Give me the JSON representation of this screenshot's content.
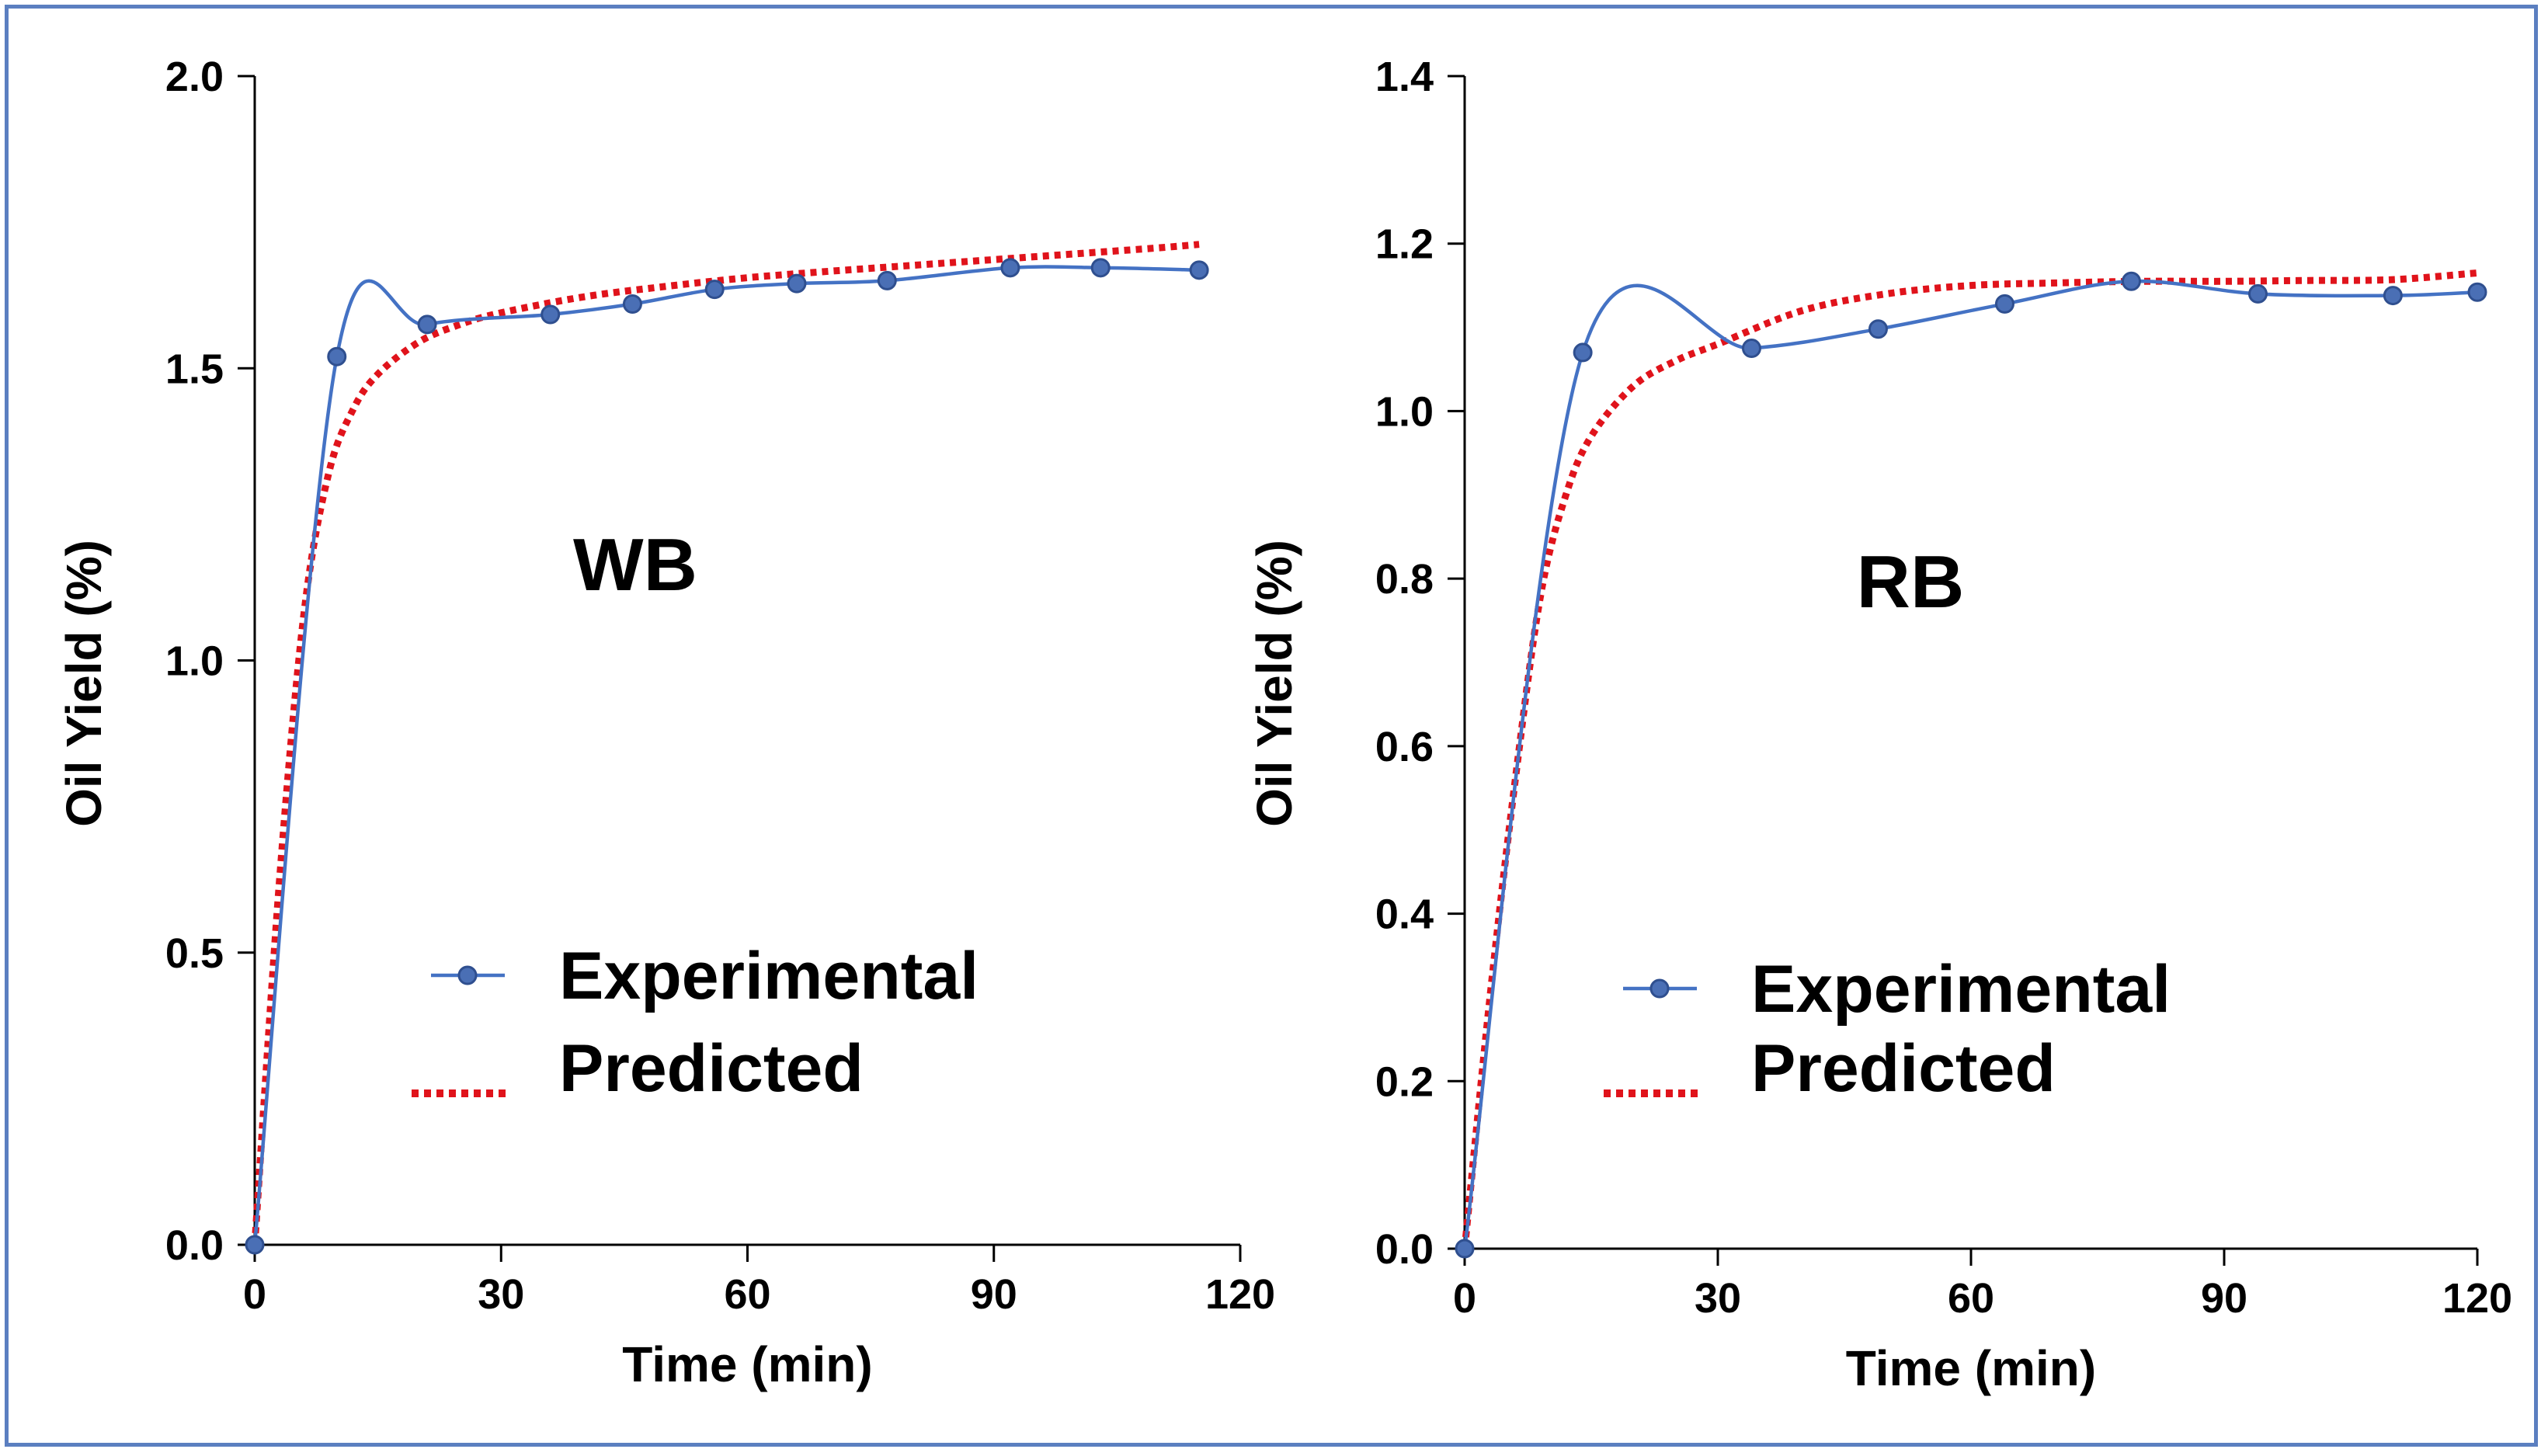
{
  "colors": {
    "experimental": "#4472c4",
    "marker_fill": "#4a6fb5",
    "marker_stroke": "#2f4f8f",
    "predicted": "#e0131b",
    "axis": "#000000",
    "frame": "#5b7fc0"
  },
  "chart_data": [
    {
      "type": "line",
      "panel_label": "WB",
      "xlabel": "Time (min)",
      "ylabel": "Oil  Yield (%)",
      "xlim": [
        0,
        120
      ],
      "ylim": [
        0,
        2.0
      ],
      "xticks": [
        0,
        30,
        60,
        90,
        120
      ],
      "xtick_labels": [
        "0",
        "30",
        "60",
        "90",
        "120"
      ],
      "yticks": [
        0.0,
        0.5,
        1.0,
        1.5,
        2.0
      ],
      "ytick_labels": [
        "0.0",
        "0.5",
        "1.0",
        "1.5",
        "2.0"
      ],
      "legend": {
        "placement": "lower-center",
        "entries": [
          "Experimental",
          "Predicted"
        ]
      },
      "series": [
        {
          "name": "Experimental",
          "style": "smooth line with markers",
          "x": [
            0,
            10,
            21,
            36,
            46,
            56,
            66,
            77,
            92,
            103,
            115
          ],
          "y": [
            0.0,
            1.52,
            1.575,
            1.592,
            1.61,
            1.635,
            1.645,
            1.65,
            1.672,
            1.672,
            1.668
          ]
        },
        {
          "name": "Predicted",
          "style": "dotted line",
          "x": [
            0,
            3,
            6,
            9,
            12,
            15,
            20,
            25,
            30,
            40,
            50,
            60,
            70,
            80,
            90,
            100,
            110,
            115
          ],
          "y": [
            0.0,
            0.62,
            1.08,
            1.32,
            1.43,
            1.49,
            1.545,
            1.575,
            1.595,
            1.622,
            1.64,
            1.655,
            1.666,
            1.676,
            1.686,
            1.696,
            1.706,
            1.712
          ]
        }
      ]
    },
    {
      "type": "line",
      "panel_label": "RB",
      "xlabel": "Time (min)",
      "ylabel": "Oil Yield (%)",
      "xlim": [
        0,
        120
      ],
      "ylim": [
        0,
        1.4
      ],
      "xticks": [
        0,
        30,
        60,
        90,
        120
      ],
      "xtick_labels": [
        "0",
        "30",
        "60",
        "90",
        "120"
      ],
      "yticks": [
        0.0,
        0.2,
        0.4,
        0.6,
        0.8,
        1.0,
        1.2,
        1.4
      ],
      "ytick_labels": [
        "0.0",
        "0.2",
        "0.4",
        "0.6",
        "0.8",
        "1.0",
        "1.2",
        "1.4"
      ],
      "legend": {
        "placement": "lower-center",
        "entries": [
          "Experimental",
          "Predicted"
        ]
      },
      "series": [
        {
          "name": "Experimental",
          "style": "smooth line with markers",
          "x": [
            0,
            14,
            34,
            49,
            64,
            79,
            94,
            110,
            120
          ],
          "y": [
            0.0,
            1.07,
            1.075,
            1.098,
            1.128,
            1.155,
            1.14,
            1.138,
            1.142
          ]
        },
        {
          "name": "Predicted",
          "style": "dotted line",
          "x": [
            0,
            3,
            6,
            9,
            12,
            15,
            20,
            25,
            30,
            40,
            50,
            60,
            70,
            80,
            90,
            100,
            110,
            120
          ],
          "y": [
            0.0,
            0.3,
            0.56,
            0.78,
            0.9,
            0.97,
            1.03,
            1.06,
            1.08,
            1.12,
            1.14,
            1.15,
            1.153,
            1.155,
            1.155,
            1.156,
            1.157,
            1.165
          ]
        }
      ]
    }
  ]
}
